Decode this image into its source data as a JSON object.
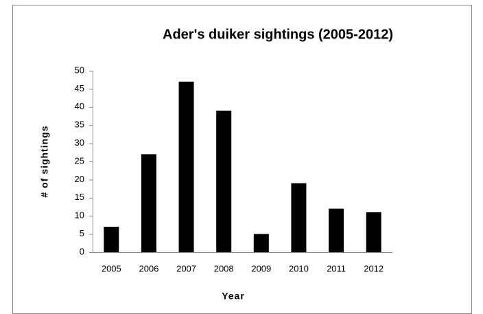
{
  "chart_data": {
    "type": "bar",
    "title": "Ader's duiker sightings (2005-2012)",
    "x_label": "Year",
    "y_label": "# of sightings",
    "categories": [
      "2005",
      "2006",
      "2007",
      "2008",
      "2009",
      "2010",
      "2011",
      "2012"
    ],
    "values": [
      7,
      27,
      47,
      39,
      5,
      19,
      12,
      11
    ],
    "color": "#000000",
    "ylim": [
      0,
      50
    ],
    "yticks": [
      0,
      5,
      10,
      15,
      20,
      25,
      30,
      35,
      40,
      45,
      50
    ],
    "grid": false
  }
}
